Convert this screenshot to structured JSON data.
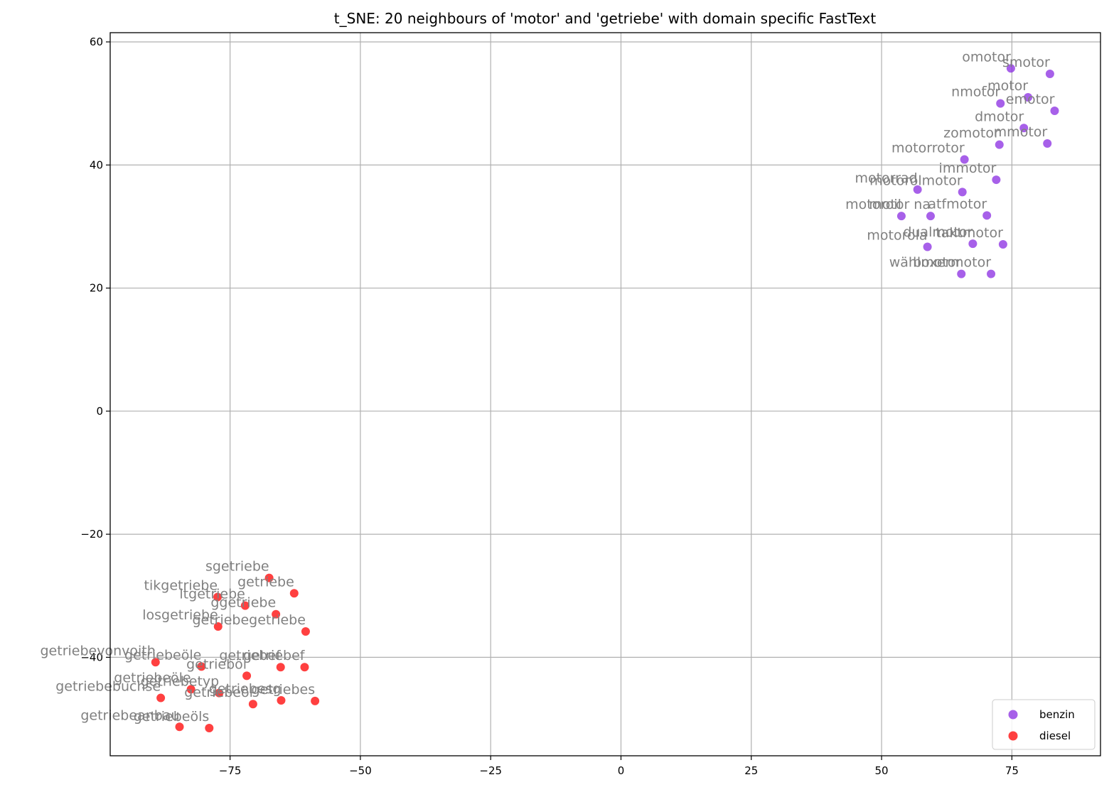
{
  "chart_data": {
    "type": "scatter",
    "title": "t_SNE: 20 neighbours of 'motor' and 'getriebe' with domain specific FastText",
    "xlabel": "",
    "ylabel": "",
    "xlim": [
      -98,
      92
    ],
    "ylim": [
      -56,
      61.5
    ],
    "x_ticks": [
      -75,
      -50,
      -25,
      0,
      25,
      50,
      75
    ],
    "y_ticks": [
      -40,
      -20,
      0,
      20,
      40,
      60
    ],
    "x_tick_labels": [
      "−75",
      "−50",
      "−25",
      "0",
      "25",
      "50",
      "75"
    ],
    "y_tick_labels": [
      "−40",
      "−20",
      "0",
      "20",
      "40",
      "60"
    ],
    "grid": true,
    "legend_position": "bottom-right",
    "series": [
      {
        "name": "benzin",
        "color": "#8a2be2",
        "points": [
          {
            "x": 74.8,
            "y": 55.7,
            "label": "omotor"
          },
          {
            "x": 82.3,
            "y": 54.8,
            "label": "smotor"
          },
          {
            "x": 78.1,
            "y": 51.0,
            "label": "-motor"
          },
          {
            "x": 72.8,
            "y": 50.0,
            "label": "nmotor"
          },
          {
            "x": 83.2,
            "y": 48.8,
            "label": "emotor"
          },
          {
            "x": 77.3,
            "y": 46.0,
            "label": "dmotor"
          },
          {
            "x": 72.6,
            "y": 43.3,
            "label": "zomotor"
          },
          {
            "x": 81.8,
            "y": 43.5,
            "label": "mmotor"
          },
          {
            "x": 65.9,
            "y": 40.9,
            "label": "motorrotor"
          },
          {
            "x": 72.0,
            "y": 37.6,
            "label": "immotor"
          },
          {
            "x": 56.9,
            "y": 36.0,
            "label": "motorrad"
          },
          {
            "x": 65.5,
            "y": 35.6,
            "label": "motorölmotor"
          },
          {
            "x": 53.8,
            "y": 31.7,
            "label": "motoroil"
          },
          {
            "x": 59.4,
            "y": 31.7,
            "label": "motor na"
          },
          {
            "x": 70.2,
            "y": 31.8,
            "label": "atfmotor"
          },
          {
            "x": 58.8,
            "y": 26.7,
            "label": "motorola"
          },
          {
            "x": 67.5,
            "y": 27.2,
            "label": "dualmotor"
          },
          {
            "x": 73.3,
            "y": 27.1,
            "label": "taktmotor"
          },
          {
            "x": 65.3,
            "y": 22.3,
            "label": "wählmotor"
          },
          {
            "x": 71.0,
            "y": 22.3,
            "label": "boxermotor"
          }
        ]
      },
      {
        "name": "diesel",
        "color": "#ff0000",
        "points": [
          {
            "x": -67.5,
            "y": -27.1,
            "label": "sgetriebe"
          },
          {
            "x": -62.7,
            "y": -29.6,
            "label": "getriebe"
          },
          {
            "x": -77.4,
            "y": -30.2,
            "label": "tikgetriebe"
          },
          {
            "x": -72.1,
            "y": -31.6,
            "label": "ltgetriebe"
          },
          {
            "x": -66.2,
            "y": -33.0,
            "label": "ggetriebe"
          },
          {
            "x": -77.3,
            "y": -35.0,
            "label": "losgetriebe"
          },
          {
            "x": -60.5,
            "y": -35.8,
            "label": "getriebegetriebe"
          },
          {
            "x": -89.3,
            "y": -40.8,
            "label": "getriebevonvoith"
          },
          {
            "x": -80.5,
            "y": -41.5,
            "label": "getriebeöle"
          },
          {
            "x": -65.3,
            "y": -41.6,
            "label": "getriebef"
          },
          {
            "x": -60.7,
            "y": -41.6,
            "label": "getriebef"
          },
          {
            "x": -71.8,
            "y": -43.0,
            "label": "getrieböl"
          },
          {
            "x": -82.5,
            "y": -45.2,
            "label": "getriebeöle"
          },
          {
            "x": -77.1,
            "y": -45.8,
            "label": "getriebetyp"
          },
          {
            "x": -88.3,
            "y": -46.6,
            "label": "getriebebuchse"
          },
          {
            "x": -65.2,
            "y": -47.0,
            "label": "getriebesg"
          },
          {
            "x": -58.7,
            "y": -47.1,
            "label": "getriebes"
          },
          {
            "x": -70.6,
            "y": -47.6,
            "label": "getriebeöl"
          },
          {
            "x": -84.7,
            "y": -51.3,
            "label": "getriebeanbau"
          },
          {
            "x": -79.0,
            "y": -51.5,
            "label": "getriebeöls"
          }
        ]
      }
    ]
  }
}
